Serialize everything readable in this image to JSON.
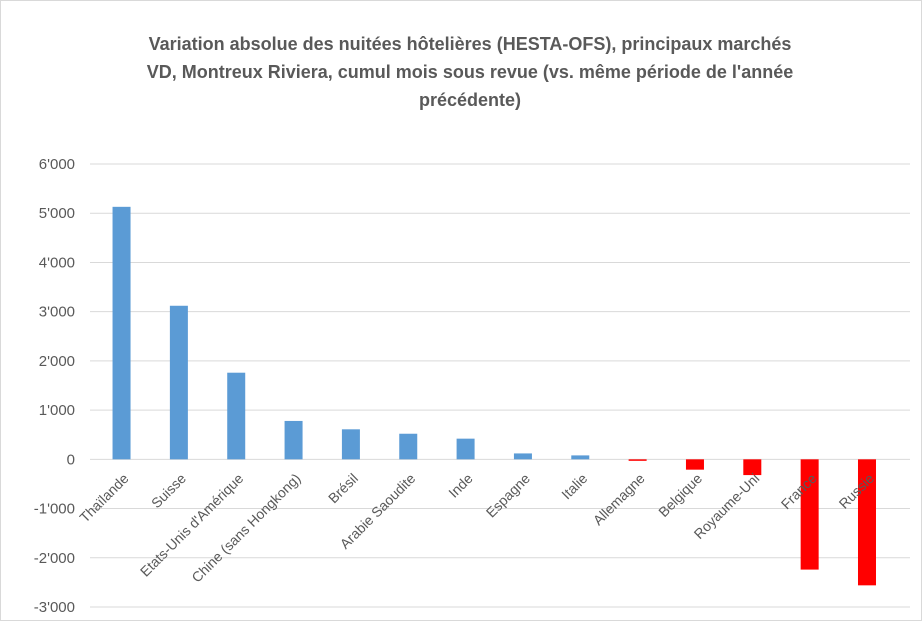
{
  "chart_data": {
    "type": "bar",
    "title": [
      "Variation absolue des nuitées hôtelières (HESTA-OFS), principaux marchés",
      "VD, Montreux Riviera, cumul mois sous revue (vs. même période de l'année",
      "précédente)"
    ],
    "xlabel": "",
    "ylabel": "",
    "ylim": [
      -3000,
      6000
    ],
    "yticks": [
      6000,
      5000,
      4000,
      3000,
      2000,
      1000,
      0,
      -1000,
      -2000,
      -3000
    ],
    "ytick_labels": [
      "6'000",
      "5'000",
      "4'000",
      "3'000",
      "2'000",
      "1'000",
      "0",
      "-1'000",
      "-2'000",
      "-3'000"
    ],
    "grid": true,
    "categories": [
      "Thaïlande",
      "Suisse",
      "Etats-Unis d'Amérique",
      "Chine (sans Hongkong)",
      "Brésil",
      "Arabie Saoudite",
      "Inde",
      "Espagne",
      "Italie",
      "Allemagne",
      "Belgique",
      "Royaume-Uni",
      "France",
      "Russie"
    ],
    "values": [
      5130,
      3120,
      1760,
      780,
      610,
      520,
      420,
      120,
      80,
      -30,
      -210,
      -320,
      -2240,
      -2560
    ],
    "colors": {
      "positive": "#5b9bd5",
      "negative": "#ff0000",
      "grid": "#d9d9d9",
      "text": "#595959"
    }
  }
}
